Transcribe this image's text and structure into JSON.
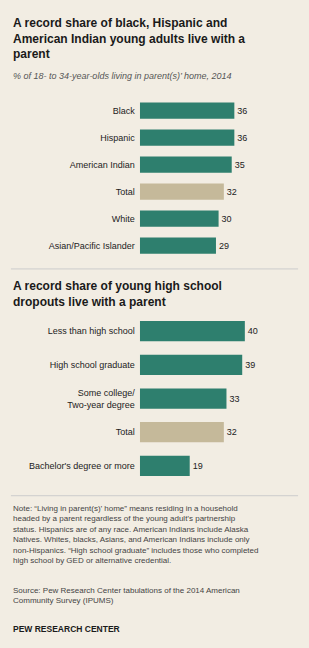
{
  "chart_data": [
    {
      "type": "bar",
      "orientation": "horizontal",
      "title": "A record share of black, Hispanic and\nAmerican Indian young adults live with a\nparent",
      "subtitle": "% of 18- to 34-year-olds living in parent(s)’ home, 2014",
      "categories": [
        "Black",
        "Hispanic",
        "American Indian",
        "Total",
        "White",
        "Asian/Pacific Islander"
      ],
      "values": [
        36,
        36,
        35,
        32,
        30,
        29
      ],
      "colors": [
        "#2e7f6e",
        "#2e7f6e",
        "#2e7f6e",
        "#c5b99a",
        "#2e7f6e",
        "#2e7f6e"
      ],
      "xlim": [
        0,
        48
      ],
      "data_labels": true,
      "tick_labels": "y",
      "grid": false
    },
    {
      "type": "bar",
      "orientation": "horizontal",
      "title": "A record share of young high school\ndropouts live with a parent",
      "categories": [
        "Less than high school",
        "High school graduate",
        "Some college/\nTwo-year degree",
        "Total",
        "Bachelor's degree or more"
      ],
      "values": [
        40,
        39,
        33,
        32,
        19
      ],
      "colors": [
        "#2e7f6e",
        "#2e7f6e",
        "#2e7f6e",
        "#c5b99a",
        "#2e7f6e"
      ],
      "xlim": [
        0,
        48
      ],
      "data_labels": true,
      "tick_labels": "y",
      "grid": false,
      "annotations": [
        "Note: “Living in parent(s)’ home” means residing in a household headed by a parent regardless of the young adult’s partnership status. Hispanics are of any race. American Indians include Alaska Natives. Whites, blacks, Asians, and American Indians include only non-Hispanics. “High school graduate” includes those who completed high school by GED or alternative credential.",
        "Source: Pew Research Center tabulations of the 2014 American Community Survey (IPUMS)",
        "PEW RESEARCH CENTER"
      ]
    }
  ]
}
